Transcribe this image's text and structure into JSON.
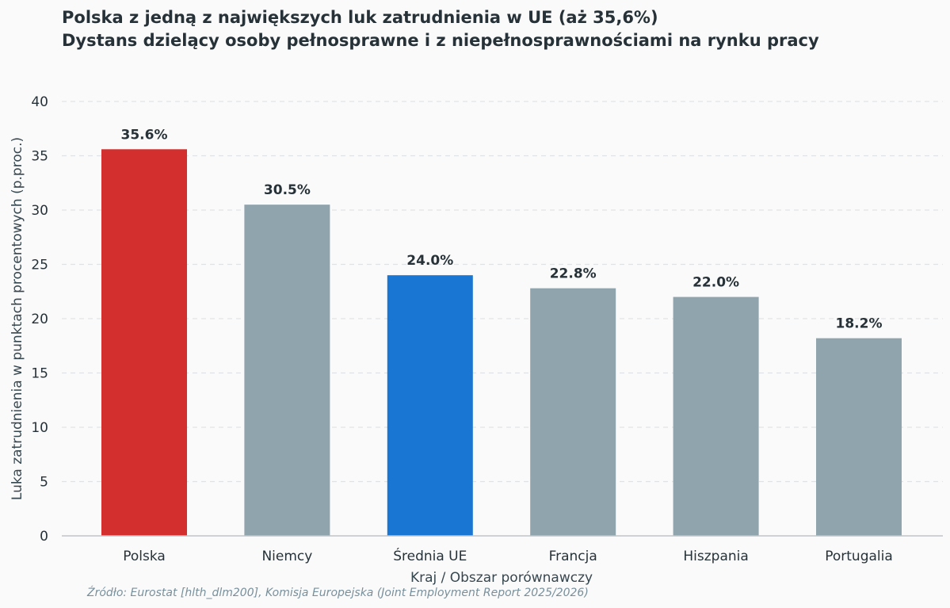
{
  "chart_data": {
    "type": "bar",
    "title": "Polska z jedną z największych luk zatrudnienia w UE (aż 35,6%)",
    "subtitle": "Dystans dzielący osoby pełnosprawne i z niepełnosprawnościami na rynku pracy",
    "xlabel": "Kraj / Obszar porównawczy",
    "ylabel": "Luka zatrudnienia w punktach procentowych (p.proc.)",
    "ylim": [
      0,
      40
    ],
    "yticks": [
      0,
      5,
      10,
      15,
      20,
      25,
      30,
      35,
      40
    ],
    "grid": true,
    "categories": [
      "Polska",
      "Niemcy",
      "Średnia UE",
      "Francja",
      "Hiszpania",
      "Portugalia"
    ],
    "values": [
      35.6,
      30.5,
      24.0,
      22.8,
      22.0,
      18.2
    ],
    "value_labels": [
      "35.6%",
      "30.5%",
      "24.0%",
      "22.8%",
      "22.0%",
      "18.2%"
    ],
    "colors": [
      "#d32f2f",
      "#90a4ae",
      "#1976d2",
      "#90a4ae",
      "#90a4ae",
      "#90a4ae"
    ]
  },
  "source": "Źródło: Eurostat [hlth_dlm200], Komisja Europejska (Joint Employment Report 2025/2026)"
}
